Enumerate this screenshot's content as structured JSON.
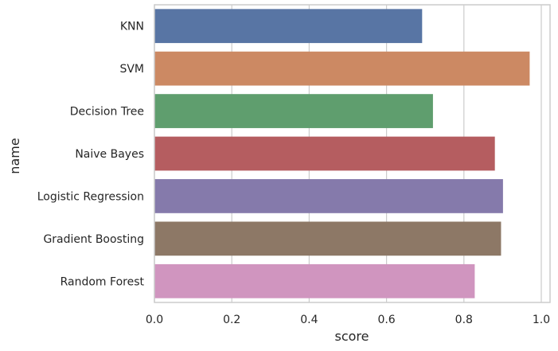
{
  "chart_data": {
    "type": "bar",
    "orientation": "horizontal",
    "categories": [
      "KNN",
      "SVM",
      "Decision Tree",
      "Naive Bayes",
      "Logistic Regression",
      "Gradient Boosting",
      "Random Forest"
    ],
    "values": [
      0.692,
      0.97,
      0.72,
      0.88,
      0.901,
      0.896,
      0.828
    ],
    "colors": [
      "#5875a4",
      "#cc8963",
      "#5f9e6e",
      "#b55d60",
      "#857aab",
      "#8d7866",
      "#d095bf"
    ],
    "xlabel": "score",
    "ylabel": "name",
    "xlim": [
      0,
      1.0
    ],
    "xticks": [
      0.0,
      0.2,
      0.4,
      0.6,
      0.8,
      1.0
    ],
    "xtick_labels": [
      "0.0",
      "0.2",
      "0.4",
      "0.6",
      "0.8",
      "1.0"
    ],
    "grid": "vertical",
    "legend": "none",
    "gridColor": "#cccccc",
    "axisColor": "#cccccc"
  }
}
